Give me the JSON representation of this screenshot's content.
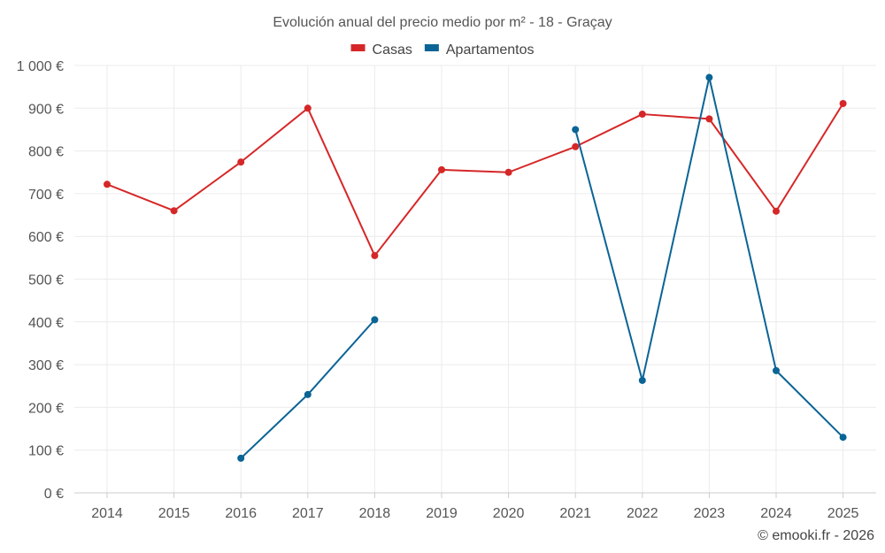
{
  "chart_data": {
    "type": "line",
    "title": "Evolución anual del precio medio por m² - 18 - Graçay",
    "xlabel": "",
    "ylabel": "",
    "categories": [
      "2014",
      "2015",
      "2016",
      "2017",
      "2018",
      "2019",
      "2020",
      "2021",
      "2022",
      "2023",
      "2024",
      "2025"
    ],
    "y_ticks": [
      0,
      100,
      200,
      300,
      400,
      500,
      600,
      700,
      800,
      900,
      1000
    ],
    "y_tick_labels": [
      "0 €",
      "100 €",
      "200 €",
      "300 €",
      "400 €",
      "500 €",
      "600 €",
      "700 €",
      "800 €",
      "900 €",
      "1 000 €"
    ],
    "ylim": [
      0,
      1000
    ],
    "grid": true,
    "legend_position": "top-center",
    "series": [
      {
        "name": "Casas",
        "color": "#d62728",
        "values": [
          722,
          660,
          774,
          900,
          555,
          756,
          750,
          810,
          886,
          875,
          659,
          911
        ]
      },
      {
        "name": "Apartamentos",
        "color": "#0a6496",
        "values": [
          null,
          null,
          81,
          230,
          405,
          null,
          null,
          850,
          263,
          972,
          286,
          130
        ]
      }
    ]
  },
  "footer": {
    "credit": "© emooki.fr - 2026"
  }
}
